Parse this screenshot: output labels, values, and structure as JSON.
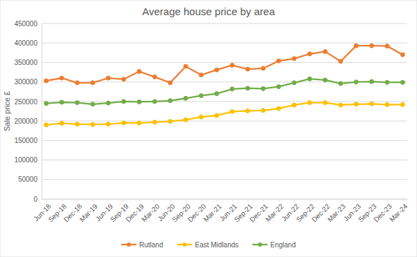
{
  "chart_data": {
    "type": "line",
    "title": "Average house price by area",
    "y_label": "Sale price £",
    "categories": [
      "Jun-18",
      "Sep-18",
      "Dec-18",
      "Mar-19",
      "Jun-19",
      "Sep-19",
      "Dec-19",
      "Mar-20",
      "Jun-20",
      "Sep-20",
      "Dec-20",
      "Mar-21",
      "Jun-21",
      "Sep-21",
      "Dec-21",
      "Mar-22",
      "Jun-22",
      "Sep-22",
      "Dec-22",
      "Mar-23",
      "Jun-23",
      "Sep-23",
      "Dec-23",
      "Mar-24"
    ],
    "series": [
      {
        "name": "Rutland",
        "color": "#ed7d31",
        "values": [
          303000,
          310000,
          298000,
          298000,
          310000,
          307000,
          327000,
          313000,
          298000,
          340000,
          318000,
          331000,
          343000,
          333000,
          335000,
          354000,
          360000,
          372000,
          378000,
          353000,
          393000,
          393000,
          392000,
          370000
        ]
      },
      {
        "name": "East Midlands",
        "color": "#ffc000",
        "values": [
          190000,
          194000,
          192000,
          191000,
          192000,
          195000,
          195000,
          197000,
          199000,
          203000,
          210000,
          214000,
          224000,
          226000,
          227000,
          232000,
          241000,
          247000,
          247000,
          241000,
          243000,
          244000,
          242000,
          242000
        ]
      },
      {
        "name": "England",
        "color": "#70ad47",
        "values": [
          245000,
          248000,
          247000,
          243000,
          246000,
          250000,
          249000,
          250000,
          252000,
          258000,
          265000,
          270000,
          282000,
          284000,
          283000,
          288000,
          298000,
          308000,
          305000,
          296000,
          300000,
          301000,
          299000,
          299000
        ]
      }
    ],
    "ylim": [
      0,
      450000
    ],
    "yticks": [
      0,
      50000,
      100000,
      150000,
      200000,
      250000,
      300000,
      350000,
      400000,
      450000
    ],
    "grid": true,
    "legend": "bottom",
    "marker": "circle"
  }
}
